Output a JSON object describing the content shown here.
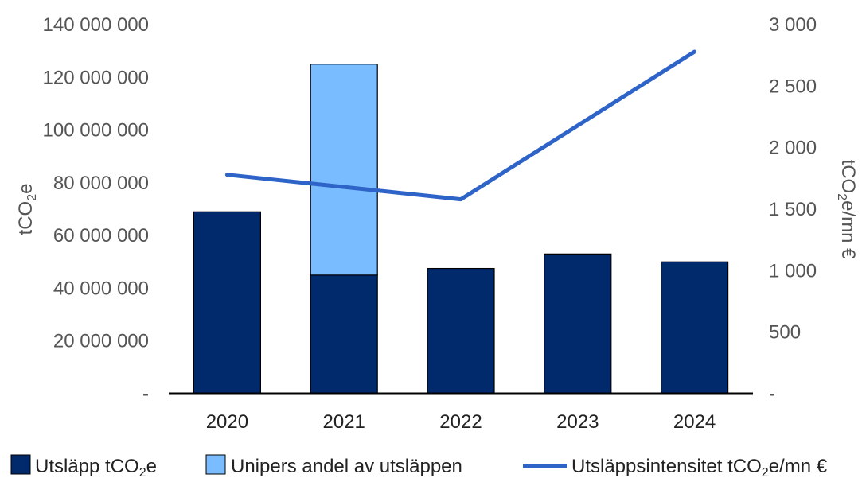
{
  "chart_data": {
    "type": "bar",
    "categories": [
      "2020",
      "2021",
      "2022",
      "2023",
      "2024"
    ],
    "series": [
      {
        "name": "Utsläpp tCO₂e",
        "kind": "bar",
        "axis": "left",
        "color": "#002A6C",
        "values": [
          69000000,
          45000000,
          47500000,
          53000000,
          50000000
        ]
      },
      {
        "name": "Unipers andel av utsläppen",
        "kind": "stacked-bar",
        "axis": "left",
        "color": "#79BCFF",
        "values": [
          0,
          80000000,
          0,
          0,
          0
        ]
      },
      {
        "name": "Utsläppsintensitet tCO₂e/mn €",
        "kind": "line",
        "axis": "right",
        "color": "#2E63C7",
        "values": [
          1780,
          1680,
          1580,
          2180,
          2780
        ]
      }
    ],
    "y_left": {
      "label": "tCO₂e",
      "ylim": [
        0,
        140000000
      ],
      "ticks": [
        {
          "value": 0,
          "label": "-"
        },
        {
          "value": 20000000,
          "label": "20 000 000"
        },
        {
          "value": 40000000,
          "label": "40 000 000"
        },
        {
          "value": 60000000,
          "label": "60 000 000"
        },
        {
          "value": 80000000,
          "label": "80 000 000"
        },
        {
          "value": 100000000,
          "label": "100 000 000"
        },
        {
          "value": 120000000,
          "label": "120 000 000"
        },
        {
          "value": 140000000,
          "label": "140 000 000"
        }
      ]
    },
    "y_right": {
      "label": "tCO₂e/mn €",
      "ylim": [
        0,
        3000
      ],
      "ticks": [
        {
          "value": 0,
          "label": "-"
        },
        {
          "value": 500,
          "label": "500"
        },
        {
          "value": 1000,
          "label": "1 000"
        },
        {
          "value": 1500,
          "label": "1 500"
        },
        {
          "value": 2000,
          "label": "2 000"
        },
        {
          "value": 2500,
          "label": "2 500"
        },
        {
          "value": 3000,
          "label": "3 000"
        }
      ]
    },
    "grid": false,
    "legend_position": "bottom"
  }
}
